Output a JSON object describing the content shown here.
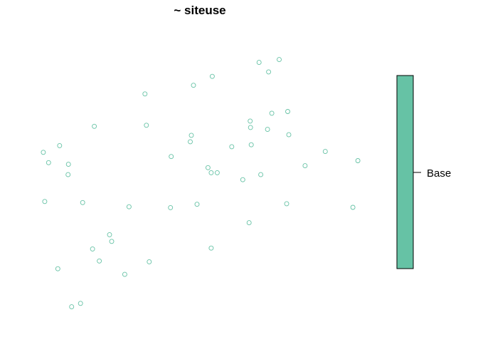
{
  "chart_data": {
    "type": "scatter",
    "title": "~ siteuse",
    "xlabel": "",
    "ylabel": "",
    "xlim": [
      0,
      100
    ],
    "ylim": [
      0,
      100
    ],
    "axes_visible": false,
    "grid": false,
    "legend": {
      "placement": "right",
      "style": "color-bar",
      "entries": [
        {
          "label": "Base",
          "color": "#66C2A5"
        }
      ]
    },
    "series": [
      {
        "color": "#66C2A5",
        "marker": "open-circle",
        "points": [
          [
            67.1,
            89.4
          ],
          [
            72.8,
            90.4
          ],
          [
            69.8,
            86.0
          ],
          [
            53.9,
            84.4
          ],
          [
            48.6,
            81.2
          ],
          [
            34.9,
            78.1
          ],
          [
            70.7,
            71.2
          ],
          [
            75.2,
            71.8
          ],
          [
            64.6,
            68.4
          ],
          [
            64.7,
            66.1
          ],
          [
            69.5,
            65.4
          ],
          [
            75.5,
            63.5
          ],
          [
            20.6,
            66.5
          ],
          [
            35.3,
            66.9
          ],
          [
            48.0,
            63.3
          ],
          [
            47.7,
            61.0
          ],
          [
            10.8,
            59.6
          ],
          [
            59.4,
            59.2
          ],
          [
            64.9,
            59.9
          ],
          [
            85.8,
            57.5
          ],
          [
            6.2,
            57.2
          ],
          [
            42.3,
            55.7
          ],
          [
            95.0,
            54.2
          ],
          [
            7.7,
            53.5
          ],
          [
            13.3,
            52.9
          ],
          [
            80.1,
            52.4
          ],
          [
            52.7,
            51.7
          ],
          [
            53.6,
            49.9
          ],
          [
            55.3,
            49.9
          ],
          [
            67.6,
            49.2
          ],
          [
            13.2,
            49.2
          ],
          [
            62.5,
            47.4
          ],
          [
            6.6,
            39.6
          ],
          [
            17.3,
            39.2
          ],
          [
            49.6,
            38.6
          ],
          [
            74.9,
            38.8
          ],
          [
            30.4,
            37.7
          ],
          [
            42.1,
            37.4
          ],
          [
            93.6,
            37.5
          ],
          [
            64.3,
            32.0
          ],
          [
            24.9,
            27.7
          ],
          [
            25.5,
            25.3
          ],
          [
            20.1,
            22.6
          ],
          [
            53.6,
            22.9
          ],
          [
            22.0,
            18.3
          ],
          [
            36.1,
            18.0
          ],
          [
            10.3,
            15.5
          ],
          [
            29.2,
            13.5
          ],
          [
            16.7,
            3.1
          ],
          [
            14.2,
            1.9
          ]
        ]
      }
    ]
  }
}
